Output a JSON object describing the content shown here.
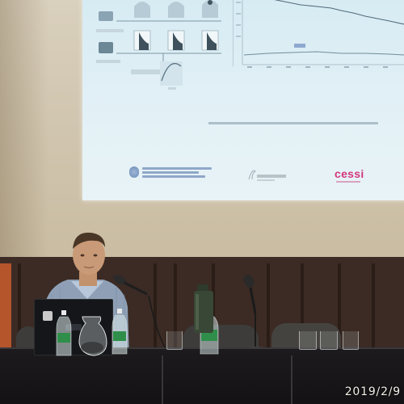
{
  "timestamp": "2019/2/9",
  "slide": {
    "caption_text": "",
    "logos": [
      {
        "name": "argentina-government-logo"
      },
      {
        "name": "unitec-logo"
      },
      {
        "name": "cessi",
        "text": "cessi"
      }
    ]
  },
  "colors": {
    "slide_background": "#e3f1f6",
    "cessi_brand": "#d3367e",
    "stage_wall": "#3b2b24",
    "table_cloth": "#161416",
    "projection_wall": "#d1c6b0"
  }
}
